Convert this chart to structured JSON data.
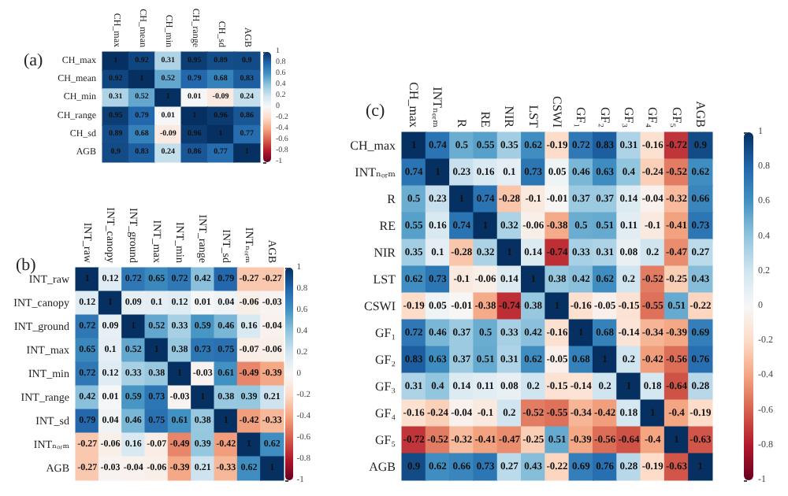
{
  "chart_data": [
    {
      "type": "heatmap",
      "title": "(a)",
      "categories": [
        "CH_max",
        "CH_mean",
        "CH_min",
        "CH_range",
        "CH_sd",
        "AGB"
      ],
      "y_categories": [
        "CH_max",
        "CH_mean",
        "CH_min",
        "CH_range",
        "CH_sd",
        "AGB"
      ],
      "cells": [
        [
          1,
          0.92,
          0.31,
          0.95,
          0.89,
          0.9
        ],
        [
          0.92,
          1,
          0.52,
          0.79,
          0.68,
          0.83
        ],
        [
          0.31,
          0.52,
          1,
          0.01,
          -0.09,
          0.24
        ],
        [
          0.95,
          0.79,
          0.01,
          1,
          0.96,
          0.86
        ],
        [
          0.89,
          0.68,
          -0.09,
          0.96,
          1,
          0.77
        ],
        [
          0.9,
          0.83,
          0.24,
          0.86,
          0.77,
          1
        ]
      ],
      "clim": [
        -1,
        1
      ],
      "cticks": [
        -1,
        -0.8,
        -0.6,
        -0.4,
        -0.2,
        0,
        0.2,
        0.4,
        0.6,
        0.8,
        1
      ],
      "data_labels": true
    },
    {
      "type": "heatmap",
      "title": "(b)",
      "categories": [
        "INT_raw",
        "INT_canopy",
        "INT_ground",
        "INT_max",
        "INT_min",
        "INT_range",
        "INT_sd",
        "INTₙₒᵣₘ",
        "AGB"
      ],
      "y_categories": [
        "INT_raw",
        "INT_canopy",
        "INT_ground",
        "INT_max",
        "INT_min",
        "INT_range",
        "INT_sd",
        "INTₙₒᵣₘ",
        "AGB"
      ],
      "cells": [
        [
          1,
          0.12,
          0.72,
          0.65,
          0.72,
          0.42,
          0.79,
          -0.27,
          -0.27
        ],
        [
          0.12,
          1,
          0.09,
          0.1,
          0.12,
          0.01,
          0.04,
          -0.06,
          -0.03
        ],
        [
          0.72,
          0.09,
          1,
          0.52,
          0.33,
          0.59,
          0.46,
          0.16,
          -0.04
        ],
        [
          0.65,
          0.1,
          0.52,
          1,
          0.38,
          0.73,
          0.75,
          -0.07,
          -0.06
        ],
        [
          0.72,
          0.12,
          0.33,
          0.38,
          1,
          -0.03,
          0.61,
          -0.49,
          -0.39
        ],
        [
          0.42,
          0.01,
          0.59,
          0.73,
          -0.03,
          1,
          0.38,
          0.39,
          0.21
        ],
        [
          0.79,
          0.04,
          0.46,
          0.75,
          0.61,
          0.38,
          1,
          -0.42,
          -0.33
        ],
        [
          -0.27,
          -0.06,
          0.16,
          -0.07,
          -0.49,
          0.39,
          -0.42,
          1,
          0.62
        ],
        [
          -0.27,
          -0.03,
          -0.04,
          -0.06,
          -0.39,
          0.21,
          -0.33,
          0.62,
          1
        ]
      ],
      "clim": [
        -1,
        1
      ],
      "cticks": [
        -1,
        -0.8,
        -0.6,
        -0.4,
        -0.2,
        0,
        0.2,
        0.4,
        0.6,
        0.8,
        1
      ],
      "data_labels": true
    },
    {
      "type": "heatmap",
      "title": "(c)",
      "categories": [
        "CH_max",
        "INTₙₒᵣₘ",
        "R",
        "RE",
        "NIR",
        "LST",
        "CSWI",
        "GF₁",
        "GF₂",
        "GF₃",
        "GF₄",
        "GF₅",
        "AGB"
      ],
      "y_categories": [
        "CH_max",
        "INTₙₒᵣₘ",
        "R",
        "RE",
        "NIR",
        "LST",
        "CSWI",
        "GF₁",
        "GF₂",
        "GF₃",
        "GF₄",
        "GF₅",
        "AGB"
      ],
      "cells": [
        [
          1,
          0.74,
          0.5,
          0.55,
          0.35,
          0.62,
          -0.19,
          0.72,
          0.83,
          0.31,
          -0.16,
          -0.72,
          0.9
        ],
        [
          0.74,
          1,
          0.23,
          0.16,
          0.1,
          0.73,
          0.05,
          0.46,
          0.63,
          0.4,
          -0.24,
          -0.52,
          0.62
        ],
        [
          0.5,
          0.23,
          1,
          0.74,
          -0.28,
          -0.1,
          -0.01,
          0.37,
          0.37,
          0.14,
          -0.04,
          -0.32,
          0.66
        ],
        [
          0.55,
          0.16,
          0.74,
          1,
          0.32,
          -0.06,
          -0.38,
          0.5,
          0.51,
          0.11,
          -0.1,
          -0.41,
          0.73
        ],
        [
          0.35,
          0.1,
          -0.28,
          0.32,
          1,
          0.14,
          -0.74,
          0.33,
          0.31,
          0.08,
          0.2,
          -0.47,
          0.27
        ],
        [
          0.62,
          0.73,
          -0.1,
          -0.06,
          0.14,
          1,
          0.38,
          0.42,
          0.62,
          0.2,
          -0.52,
          -0.25,
          0.43
        ],
        [
          -0.19,
          0.05,
          -0.01,
          -0.38,
          -0.74,
          0.38,
          1,
          -0.16,
          -0.05,
          -0.15,
          -0.55,
          0.51,
          -0.22
        ],
        [
          0.72,
          0.46,
          0.37,
          0.5,
          0.33,
          0.42,
          -0.16,
          1,
          0.68,
          -0.14,
          -0.34,
          -0.39,
          0.69
        ],
        [
          0.83,
          0.63,
          0.37,
          0.51,
          0.31,
          0.62,
          -0.05,
          0.68,
          1,
          0.2,
          -0.42,
          -0.56,
          0.76
        ],
        [
          0.31,
          0.4,
          0.14,
          0.11,
          0.08,
          0.2,
          -0.15,
          -0.14,
          0.2,
          1,
          0.18,
          -0.64,
          0.28
        ],
        [
          -0.16,
          -0.24,
          -0.04,
          -0.1,
          0.2,
          -0.52,
          -0.55,
          -0.34,
          -0.42,
          0.18,
          1,
          -0.4,
          -0.19
        ],
        [
          -0.72,
          -0.52,
          -0.32,
          -0.41,
          -0.47,
          -0.25,
          0.51,
          -0.39,
          -0.56,
          -0.64,
          -0.4,
          1,
          -0.63
        ],
        [
          0.9,
          0.62,
          0.66,
          0.73,
          0.27,
          0.43,
          -0.22,
          0.69,
          0.76,
          0.28,
          -0.19,
          -0.63,
          1
        ]
      ],
      "clim": [
        -1,
        1
      ],
      "cticks": [
        -1,
        -0.8,
        -0.6,
        -0.4,
        -0.2,
        0,
        0.2,
        0.4,
        0.6,
        0.8,
        1
      ],
      "data_labels": true
    }
  ]
}
